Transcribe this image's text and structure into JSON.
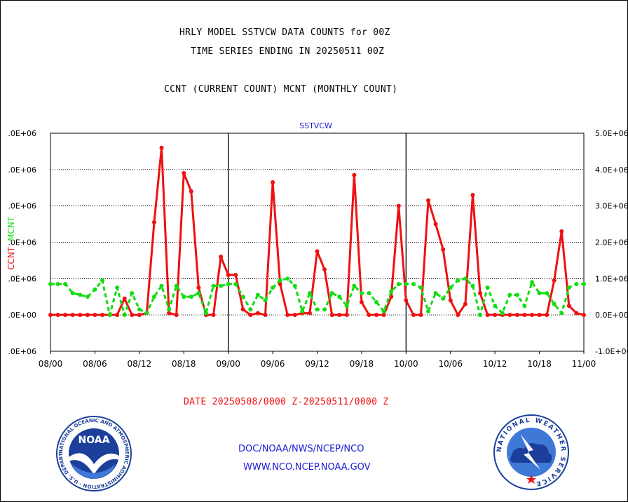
{
  "titles": {
    "line1": "HRLY MODEL SSTVCW DATA COUNTS for 00Z",
    "line2": "TIME SERIES ENDING IN 20250511 00Z",
    "line3": "CCNT (CURRENT COUNT) MCNT (MONTHLY COUNT)"
  },
  "date_range": "DATE 20250508/0000 Z-20250511/0000 Z",
  "footer": {
    "org": "DOC/NOAA/NWS/NCEP/NCO",
    "url": "WWW.NCO.NCEP.NOAA.GOV"
  },
  "logos": {
    "noaa": "NOAA",
    "noaa_ring": "NATIONAL OCEANIC AND ATMOSPHERIC ADMINISTRATION · U.S. DEPARTMENT OF COMMERCE",
    "nws_ring": "NATIONAL WEATHER SERVICE"
  },
  "chart_data": {
    "type": "line",
    "title": "SSTVCW",
    "ylabel_left": "CCNT  MCNT",
    "ylabel_left_parts": [
      {
        "text": "CCNT",
        "color": "#ee1111"
      },
      {
        "text": "MCNT",
        "color": "#11dd11"
      }
    ],
    "x_tick_labels": [
      "08/00",
      "08/06",
      "08/12",
      "08/18",
      "09/00",
      "09/06",
      "09/12",
      "09/18",
      "10/00",
      "10/06",
      "10/12",
      "10/18",
      "11/00"
    ],
    "x_major_divisions": [
      "09/00",
      "10/00"
    ],
    "xlim": [
      0,
      72
    ],
    "ylim": [
      -1000000,
      5000000
    ],
    "y_ticks": [
      -1000000,
      0,
      1000000,
      2000000,
      3000000,
      4000000,
      5000000
    ],
    "y_tick_labels_left": [
      ".0E+06",
      ".0E+00",
      ".0E+06",
      ".0E+06",
      ".0E+06",
      ".0E+06",
      ".0E+06"
    ],
    "y_tick_labels_right": [
      "-1.0E+06",
      "0.0E+00",
      "1.0E+06",
      "2.0E+06",
      "3.0E+06",
      "4.0E+06",
      "5.0E+06"
    ],
    "grid": true,
    "colors": {
      "CCNT": "#ee1111",
      "MCNT": "#11dd11"
    },
    "series": [
      {
        "name": "CCNT",
        "x": [
          0,
          1,
          2,
          3,
          4,
          5,
          6,
          7,
          8,
          9,
          10,
          11,
          12,
          13,
          14,
          15,
          16,
          17,
          18,
          19,
          20,
          21,
          22,
          23,
          24,
          25,
          26,
          27,
          28,
          29,
          30,
          31,
          32,
          33,
          34,
          35,
          36,
          37,
          38,
          39,
          40,
          41,
          42,
          43,
          44,
          45,
          46,
          47,
          48,
          49,
          50,
          51,
          52,
          53,
          54,
          55,
          56,
          57,
          58,
          59,
          60,
          61,
          62,
          63,
          64,
          65,
          66,
          67,
          68,
          69,
          70,
          71,
          72
        ],
        "values": [
          0,
          0,
          0,
          0,
          0,
          0,
          0,
          0,
          0,
          0,
          450000,
          0,
          0,
          50000,
          2550000,
          4600000,
          50000,
          0,
          3900000,
          3400000,
          750000,
          0,
          0,
          1600000,
          1100000,
          1100000,
          150000,
          0,
          50000,
          0,
          3650000,
          850000,
          0,
          0,
          50000,
          50000,
          1750000,
          1250000,
          0,
          0,
          0,
          3850000,
          350000,
          0,
          0,
          0,
          500000,
          3000000,
          400000,
          0,
          0,
          3150000,
          2500000,
          1800000,
          400000,
          0,
          300000,
          3300000,
          600000,
          0,
          0,
          0,
          0,
          0,
          0,
          0,
          0,
          0,
          950000,
          2300000,
          250000,
          50000,
          0
        ]
      },
      {
        "name": "MCNT",
        "x": [
          0,
          1,
          2,
          3,
          4,
          5,
          6,
          7,
          8,
          9,
          10,
          11,
          12,
          13,
          14,
          15,
          16,
          17,
          18,
          19,
          20,
          21,
          22,
          23,
          24,
          25,
          26,
          27,
          28,
          29,
          30,
          31,
          32,
          33,
          34,
          35,
          36,
          37,
          38,
          39,
          40,
          41,
          42,
          43,
          44,
          45,
          46,
          47,
          48,
          49,
          50,
          51,
          52,
          53,
          54,
          55,
          56,
          57,
          58,
          59,
          60,
          61,
          62,
          63,
          64,
          65,
          66,
          67,
          68,
          69,
          70,
          71,
          72
        ],
        "values": [
          850000,
          850000,
          850000,
          600000,
          550000,
          500000,
          700000,
          950000,
          0,
          750000,
          0,
          600000,
          150000,
          50000,
          500000,
          800000,
          150000,
          800000,
          500000,
          500000,
          600000,
          50000,
          800000,
          800000,
          850000,
          850000,
          500000,
          150000,
          550000,
          400000,
          750000,
          950000,
          1000000,
          800000,
          100000,
          600000,
          150000,
          150000,
          600000,
          500000,
          250000,
          800000,
          600000,
          600000,
          350000,
          100000,
          650000,
          850000,
          850000,
          850000,
          750000,
          100000,
          600000,
          450000,
          750000,
          950000,
          1000000,
          800000,
          0,
          750000,
          250000,
          50000,
          550000,
          550000,
          250000,
          900000,
          600000,
          600000,
          300000,
          50000,
          750000,
          850000,
          850000
        ]
      }
    ]
  }
}
